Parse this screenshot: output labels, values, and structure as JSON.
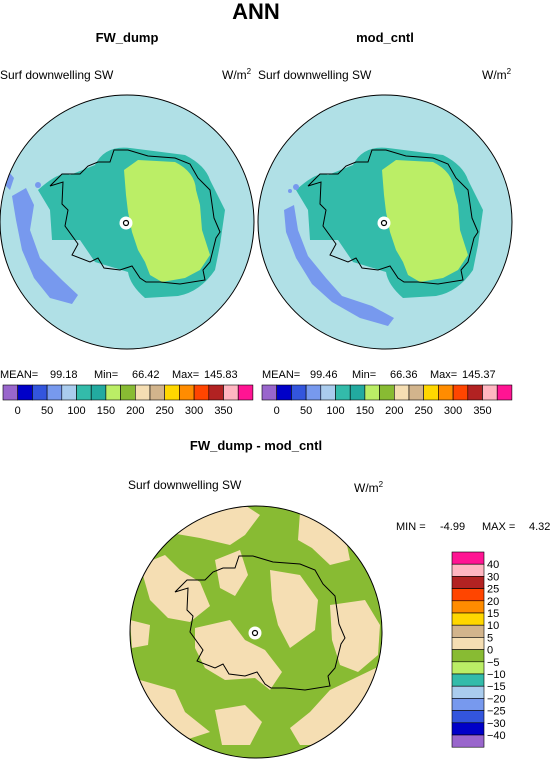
{
  "chart_data": [
    {
      "type": "heatmap",
      "title": "FW_dump",
      "suptitle": "ANN",
      "variable": "Surf downwelling SW",
      "units": "W/m",
      "units_exponent": "2",
      "projection": "polar stereographic (south pole)",
      "stats": {
        "mean_label": "MEAN=",
        "mean": "99.18",
        "min_label": "Min=",
        "min": "66.42",
        "max_label": "Max=",
        "max": "145.83"
      },
      "colorbar": {
        "orientation": "horizontal",
        "levels": [
          0,
          25,
          50,
          75,
          100,
          125,
          150,
          175,
          200,
          225,
          250,
          275,
          300,
          325,
          350
        ],
        "tick_labels": [
          "0",
          "50",
          "100",
          "150",
          "200",
          "250",
          "300",
          "350"
        ],
        "colors": [
          "#9966cc",
          "#0000c8",
          "#3355dd",
          "#7799ee",
          "#aaccee",
          "#33bbaa",
          "#22aaa0",
          "#bbee66",
          "#88bb33",
          "#f5deb3",
          "#d2b48c",
          "#ffd700",
          "#ff8c00",
          "#ff4500",
          "#b22222",
          "#ffb6c1",
          "#ff1493"
        ]
      }
    },
    {
      "type": "heatmap",
      "title": "mod_cntl",
      "variable": "Surf downwelling SW",
      "units": "W/m",
      "units_exponent": "2",
      "projection": "polar stereographic (south pole)",
      "stats": {
        "mean_label": "MEAN=",
        "mean": "99.46",
        "min_label": "Min=",
        "min": "66.36",
        "max_label": "Max=",
        "max": "145.37"
      },
      "colorbar": {
        "orientation": "horizontal",
        "levels": [
          0,
          25,
          50,
          75,
          100,
          125,
          150,
          175,
          200,
          225,
          250,
          275,
          300,
          325,
          350
        ],
        "tick_labels": [
          "0",
          "50",
          "100",
          "150",
          "200",
          "250",
          "300",
          "350"
        ],
        "colors": [
          "#9966cc",
          "#0000c8",
          "#3355dd",
          "#7799ee",
          "#aaccee",
          "#33bbaa",
          "#22aaa0",
          "#bbee66",
          "#88bb33",
          "#f5deb3",
          "#d2b48c",
          "#ffd700",
          "#ff8c00",
          "#ff4500",
          "#b22222",
          "#ffb6c1",
          "#ff1493"
        ]
      }
    },
    {
      "type": "heatmap",
      "title": "FW_dump - mod_cntl",
      "variable": "Surf downwelling SW",
      "units": "W/m",
      "units_exponent": "2",
      "projection": "polar stereographic (south pole)",
      "stats": {
        "min_label": "MIN =",
        "min": "-4.99",
        "max_label": "MAX =",
        "max": "4.32"
      },
      "colorbar": {
        "orientation": "vertical",
        "tick_labels": [
          "40",
          "30",
          "25",
          "20",
          "15",
          "10",
          "5",
          "0",
          "−5",
          "−10",
          "−15",
          "−20",
          "−25",
          "−30",
          "−40"
        ],
        "colors": [
          "#ff1493",
          "#ffb6c1",
          "#b22222",
          "#ff4500",
          "#ff8c00",
          "#ffd700",
          "#d2b48c",
          "#f5deb3",
          "#88bb33",
          "#bbee66",
          "#33bbaa",
          "#aaccee",
          "#7799ee",
          "#3355dd",
          "#0000c8",
          "#9966cc"
        ]
      }
    }
  ]
}
